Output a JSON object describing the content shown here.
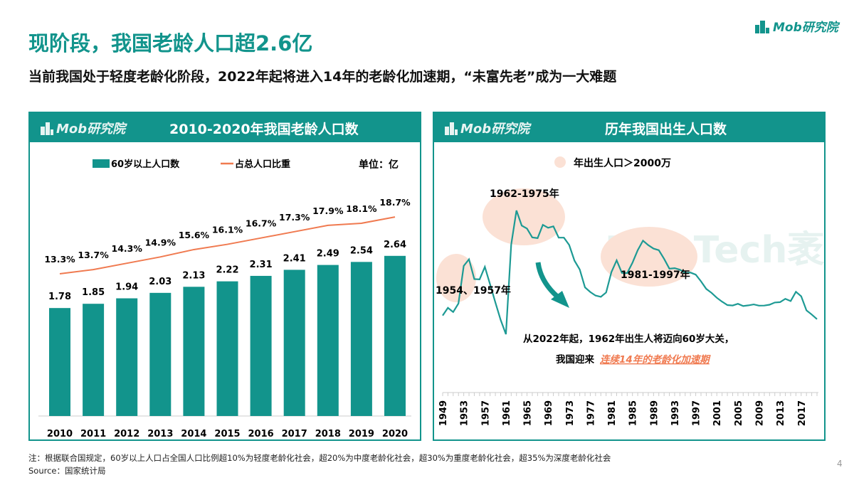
{
  "title": "现阶段，我国老龄人口超2.6亿",
  "subtitle": "当前我国处于轻度老龄化阶段，2022年起将进入14年的老龄化加速期，“未富先老”成为一大难题",
  "brand": "Mob研究院",
  "watermark": "MobTech袤博",
  "colors": {
    "teal": "#12948c",
    "orange": "#f07a50",
    "peach": "#fbe1d5"
  },
  "chart_data": [
    {
      "type": "bar",
      "title": "2010-2020年我国老龄人口数",
      "unit_label": "单位：亿",
      "categories": [
        "2010",
        "2011",
        "2012",
        "2013",
        "2014",
        "2015",
        "2016",
        "2017",
        "2018",
        "2019",
        "2020"
      ],
      "series": [
        {
          "name": "60岁以上人口数",
          "type": "bar",
          "values": [
            1.78,
            1.85,
            1.94,
            2.03,
            2.13,
            2.22,
            2.31,
            2.41,
            2.49,
            2.54,
            2.64
          ],
          "labels": [
            "1.78",
            "1.85",
            "1.94",
            "2.03",
            "2.13",
            "2.22",
            "2.31",
            "2.41",
            "2.49",
            "2.54",
            "2.64"
          ]
        },
        {
          "name": "占总人口比重",
          "type": "line",
          "values": [
            13.3,
            13.7,
            14.3,
            14.9,
            15.6,
            16.1,
            16.7,
            17.3,
            17.9,
            18.1,
            18.7
          ],
          "labels": [
            "13.3%",
            "13.7%",
            "14.3%",
            "14.9%",
            "15.6%",
            "16.1%",
            "16.7%",
            "17.3%",
            "17.9%",
            "18.1%",
            "18.7%"
          ]
        }
      ]
    },
    {
      "type": "line",
      "title": "历年我国出生人口数",
      "legend": "年出生人口＞2000万",
      "x_start": 1949,
      "tick_labels": [
        "1949",
        "1953",
        "1957",
        "1961",
        "1965",
        "1969",
        "1973",
        "1977",
        "1981",
        "1985",
        "1989",
        "1993",
        "1997",
        "2001",
        "2005",
        "2009",
        "2013",
        "2017"
      ],
      "values": [
        1450,
        1560,
        1500,
        1622,
        2151,
        2245,
        1965,
        1961,
        2138,
        1889,
        1635,
        1389,
        1187,
        2451,
        2934,
        2721,
        2679,
        2554,
        2543,
        2731,
        2690,
        2710,
        2551,
        2550,
        2447,
        2226,
        2102,
        1849,
        1783,
        1733,
        1715,
        1776,
        2064,
        2230,
        2052,
        2050,
        2196,
        2374,
        2508,
        2445,
        2396,
        2374,
        2250,
        2113,
        2120,
        2098,
        2052,
        2057,
        2028,
        1934,
        1827,
        1771,
        1702,
        1647,
        1599,
        1593,
        1617,
        1585,
        1595,
        1608,
        1591,
        1592,
        1604,
        1635,
        1640,
        1687,
        1655,
        1786,
        1723,
        1523,
        1465,
        1400
      ],
      "annotations": [
        "1962-1975年",
        "1954、1957年",
        "1981-1997年"
      ],
      "note_line1": "从2022年起，1962年出生人将迈向60岁大关，",
      "note_line2_prefix": "我国迎来",
      "note_line2_highlight": "连续14年的老龄化加速期"
    }
  ],
  "footer": {
    "note": "注：根据联合国规定，60岁以上人口占全国人口比例超10%为轻度老龄化社会，超20%为中度老龄化社会，超30%为重度老龄化社会，超35%为深度老龄化社会",
    "source": "Source：国家统计局",
    "page": "4"
  }
}
